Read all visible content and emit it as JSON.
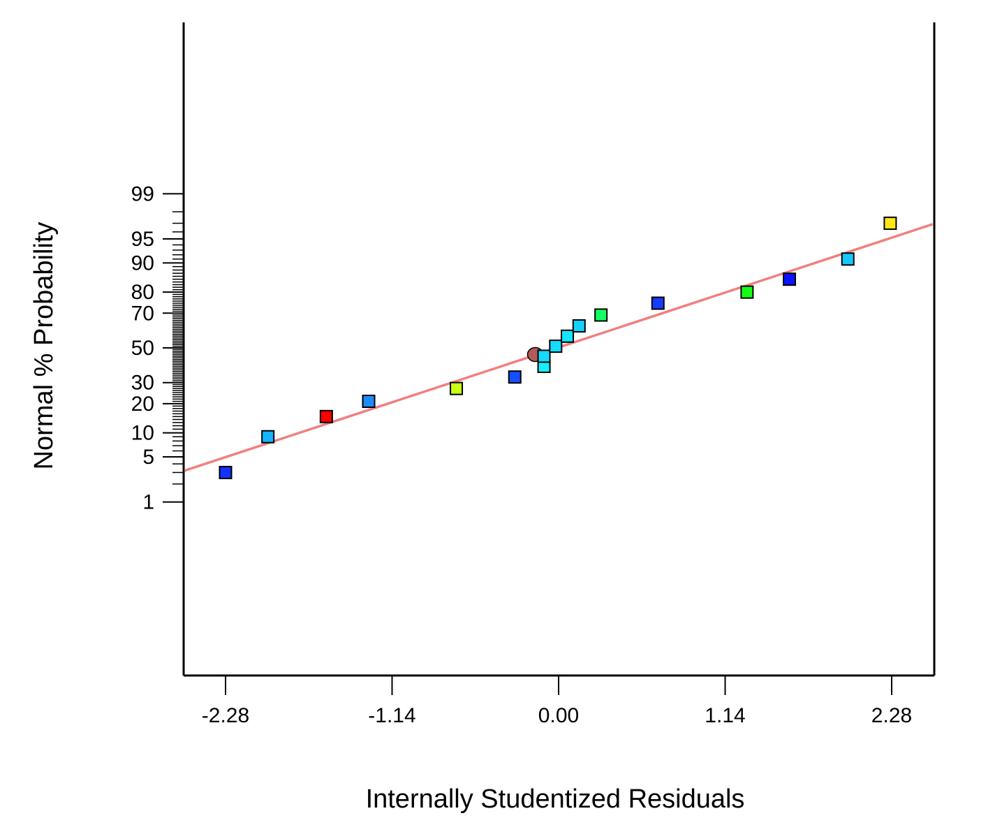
{
  "chart_data": {
    "type": "scatter",
    "title": "",
    "xlabel": "Internally  Studentized Residuals",
    "ylabel": "Normal % Probability",
    "x_ticks": [
      -2.28,
      -1.14,
      0.0,
      1.14,
      2.28
    ],
    "x_tick_labels": [
      "-2.28",
      "-1.14",
      "0.00",
      "1.14",
      "2.28"
    ],
    "y_scale": "normal-probability",
    "y_ticks": [
      1,
      5,
      10,
      20,
      30,
      50,
      70,
      80,
      90,
      95,
      99
    ],
    "y_tick_labels": [
      "1",
      "5",
      "10",
      "20",
      "30",
      "50",
      "70",
      "80",
      "90",
      "95",
      "99"
    ],
    "xlim": [
      -2.56,
      2.56
    ],
    "grid": false,
    "legend": "none",
    "fit_line": {
      "color": "#f08080",
      "x": [
        -2.56,
        2.56
      ],
      "y": [
        3.2,
        96.9
      ]
    },
    "points": [
      {
        "x": -2.28,
        "y": 3.0,
        "color": "#1432ff",
        "marker": "square"
      },
      {
        "x": -1.99,
        "y": 9.0,
        "color": "#14b4ff",
        "marker": "square"
      },
      {
        "x": -1.59,
        "y": 15.0,
        "color": "#ff0000",
        "marker": "square"
      },
      {
        "x": -1.3,
        "y": 21.0,
        "color": "#1e8cff",
        "marker": "square"
      },
      {
        "x": -0.7,
        "y": 27.0,
        "color": "#c8ff14",
        "marker": "square"
      },
      {
        "x": -0.3,
        "y": 33.0,
        "color": "#1450ff",
        "marker": "square"
      },
      {
        "x": -0.16,
        "y": 46.0,
        "color": "#b45a5a",
        "marker": "circle"
      },
      {
        "x": -0.1,
        "y": 39.0,
        "color": "#14f0ff",
        "marker": "square"
      },
      {
        "x": -0.1,
        "y": 45.0,
        "color": "#14dcff",
        "marker": "square"
      },
      {
        "x": -0.02,
        "y": 51.0,
        "color": "#14dcff",
        "marker": "square"
      },
      {
        "x": 0.06,
        "y": 57.0,
        "color": "#14e6ff",
        "marker": "square"
      },
      {
        "x": 0.14,
        "y": 63.0,
        "color": "#14d2ff",
        "marker": "square"
      },
      {
        "x": 0.29,
        "y": 69.0,
        "color": "#14ff64",
        "marker": "square"
      },
      {
        "x": 0.68,
        "y": 75.0,
        "color": "#143cff",
        "marker": "square"
      },
      {
        "x": 1.29,
        "y": 80.0,
        "color": "#14ff14",
        "marker": "square"
      },
      {
        "x": 1.58,
        "y": 85.0,
        "color": "#0a14ff",
        "marker": "square"
      },
      {
        "x": 1.98,
        "y": 91.0,
        "color": "#14c8ff",
        "marker": "square"
      },
      {
        "x": 2.27,
        "y": 97.0,
        "color": "#ffe614",
        "marker": "square"
      }
    ]
  }
}
